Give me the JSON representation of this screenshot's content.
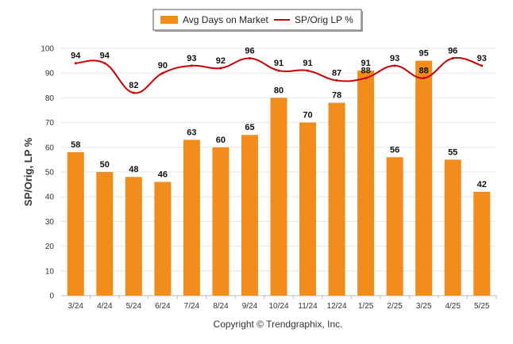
{
  "chart_data": {
    "type": "bar",
    "categories": [
      "3/24",
      "4/24",
      "5/24",
      "6/24",
      "7/24",
      "8/24",
      "9/24",
      "10/24",
      "11/24",
      "12/24",
      "1/25",
      "2/25",
      "3/25",
      "4/25",
      "5/25"
    ],
    "series": [
      {
        "name": "Avg Days on Market",
        "type": "bar",
        "color": "#f28c1a",
        "values": [
          58,
          50,
          48,
          46,
          63,
          60,
          65,
          80,
          70,
          78,
          91,
          56,
          95,
          55,
          42
        ]
      },
      {
        "name": "SP/Orig LP %",
        "type": "line",
        "color": "#cc0000",
        "values": [
          94,
          94,
          82,
          90,
          93,
          92,
          96,
          91,
          91,
          87,
          88,
          93,
          88,
          96,
          93
        ]
      }
    ],
    "ylabel": "SP/Orig, LP %",
    "ylim": [
      0,
      100
    ],
    "yticks": [
      0,
      10,
      20,
      30,
      40,
      50,
      60,
      70,
      80,
      90,
      100
    ],
    "grid": true,
    "legend": "top-center"
  },
  "footer": {
    "copyright": "Copyright © Trendgraphix, Inc."
  }
}
